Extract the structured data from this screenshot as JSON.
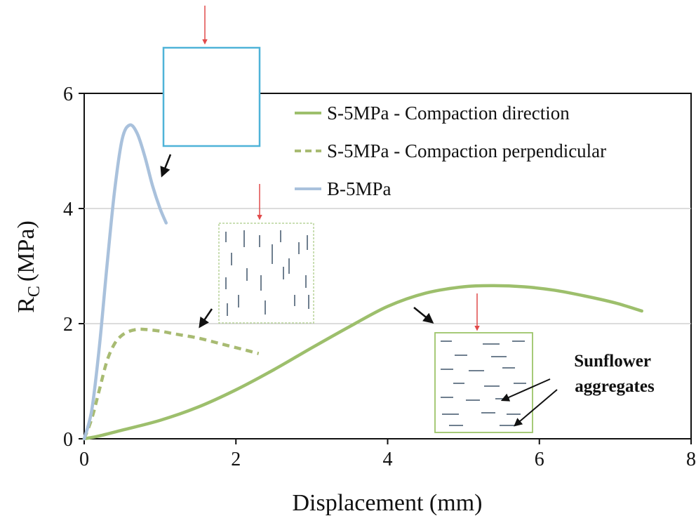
{
  "chart_data": {
    "type": "line",
    "xlabel": "Displacement (mm)",
    "ylabel_main": "R",
    "ylabel_sub": "C",
    "ylabel_unit": "(MPa)",
    "xlim": [
      0,
      8
    ],
    "ylim": [
      0,
      6
    ],
    "xticks": [
      0,
      2,
      4,
      6,
      8
    ],
    "yticks": [
      0,
      2,
      4,
      6
    ],
    "grid": "horizontal",
    "legend_position": "top-right",
    "series": [
      {
        "name": "S-5MPa - Compaction direction",
        "color": "#9dbf6c",
        "style": "solid",
        "x": [
          0,
          0.2,
          0.5,
          1.0,
          1.5,
          2.0,
          2.5,
          3.0,
          3.5,
          4.0,
          4.5,
          5.0,
          5.4,
          5.8,
          6.2,
          6.6,
          7.0,
          7.35
        ],
        "y": [
          0,
          0.05,
          0.15,
          0.32,
          0.55,
          0.85,
          1.2,
          1.58,
          1.95,
          2.3,
          2.53,
          2.64,
          2.66,
          2.64,
          2.58,
          2.48,
          2.36,
          2.22
        ]
      },
      {
        "name": "S-5MPa - Compaction perpendicular",
        "color": "#a8bb72",
        "style": "dashed",
        "x": [
          0,
          0.1,
          0.2,
          0.3,
          0.4,
          0.5,
          0.6,
          0.7,
          0.8,
          1.0,
          1.2,
          1.5,
          1.8,
          2.1,
          2.3
        ],
        "y": [
          0,
          0.35,
          0.85,
          1.35,
          1.65,
          1.8,
          1.87,
          1.9,
          1.9,
          1.87,
          1.82,
          1.75,
          1.65,
          1.55,
          1.48
        ]
      },
      {
        "name": "B-5MPa",
        "color": "#a9c1dc",
        "style": "solid",
        "x": [
          0,
          0.1,
          0.2,
          0.3,
          0.4,
          0.5,
          0.6,
          0.7,
          0.8,
          0.9,
          1.0,
          1.08
        ],
        "y": [
          0,
          0.5,
          1.6,
          3.0,
          4.3,
          5.2,
          5.45,
          5.3,
          4.9,
          4.4,
          4.0,
          3.75
        ]
      }
    ],
    "annotations": {
      "aggregates_label": [
        "Sunflower",
        "aggregates"
      ]
    }
  }
}
